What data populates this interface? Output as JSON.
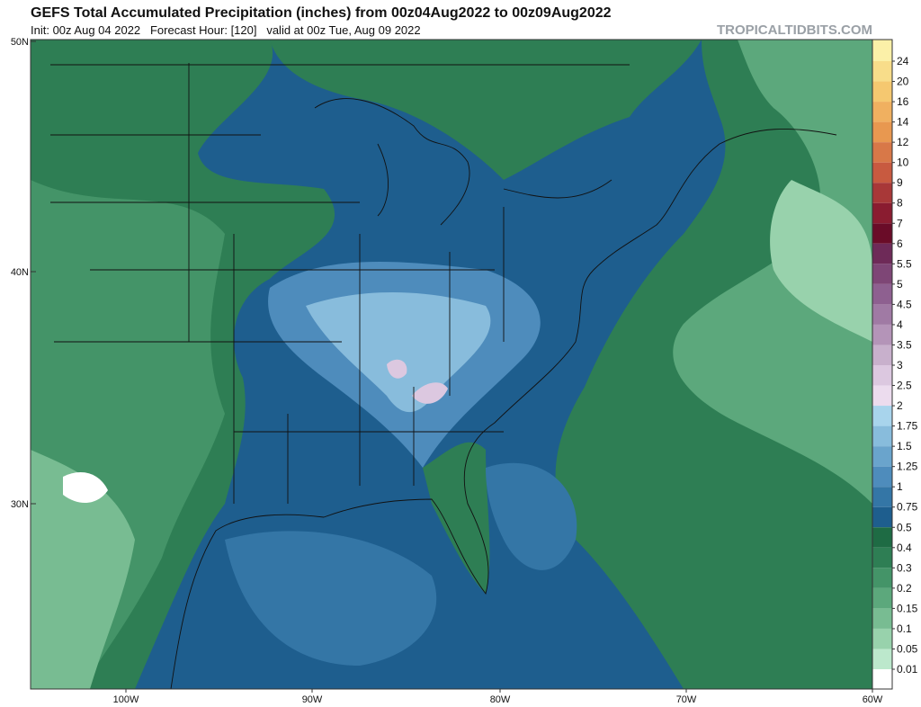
{
  "header": {
    "title": "GEFS Total Accumulated Precipitation (inches) from 00z04Aug2022 to 00z09Aug2022",
    "subtitle": "Init: 00z Aug 04 2022   Forecast Hour: [120]   valid at 00z Tue, Aug 09 2022",
    "watermark": "TROPICALTIDBITS.COM"
  },
  "map": {
    "lat_labels": [
      "50N",
      "40N",
      "30N"
    ],
    "lon_labels": [
      "100W",
      "90W",
      "80W",
      "70W",
      "60W"
    ]
  },
  "colorbar": {
    "labels": [
      "24",
      "20",
      "16",
      "14",
      "12",
      "10",
      "9",
      "8",
      "7",
      "6",
      "5.5",
      "5",
      "4.5",
      "4",
      "3.5",
      "3",
      "2.5",
      "2",
      "1.75",
      "1.5",
      "1.25",
      "1",
      "0.75",
      "0.5",
      "0.4",
      "0.3",
      "0.2",
      "0.15",
      "0.1",
      "0.05",
      "0.01"
    ],
    "colors": [
      "#fbf0a8",
      "#f8dd8a",
      "#f5c870",
      "#f0b060",
      "#e89850",
      "#d87848",
      "#c85a40",
      "#a83838",
      "#8a1c30",
      "#6a0c28",
      "#6e2a58",
      "#7e4676",
      "#8e6090",
      "#a07aa4",
      "#b494b8",
      "#c8b0cc",
      "#dcc8e0",
      "#ecdcee",
      "#a8d4ec",
      "#88bcdc",
      "#6aa4cc",
      "#4e8cbc",
      "#3476a6",
      "#1e5e8e",
      "#1e6b44",
      "#2e7e54",
      "#449468",
      "#5ca87c",
      "#78bc92",
      "#98d2ac",
      "#bce8cc",
      "#ffffff"
    ]
  }
}
